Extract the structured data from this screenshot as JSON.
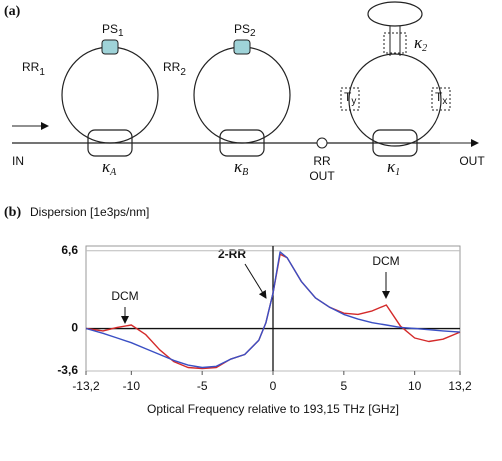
{
  "diagram": {
    "panel_label": "(a)",
    "rings": [
      {
        "label": {
          "text": "RR",
          "sub": "1"
        },
        "phase_shifter": {
          "text": "PS",
          "sub": "1"
        },
        "coupler": {
          "text": "κ",
          "sub": "A"
        }
      },
      {
        "label": {
          "text": "RR",
          "sub": "2"
        },
        "phase_shifter": {
          "text": "PS",
          "sub": "2"
        },
        "coupler": {
          "text": "κ",
          "sub": "B"
        }
      },
      {
        "coupler": {
          "text": "κ",
          "sub": "1"
        },
        "top_coupler": {
          "text": "κ",
          "sub": "2"
        },
        "tap_left": {
          "text": "T",
          "sub": "y"
        },
        "tap_right": {
          "text": "T",
          "sub": "x"
        }
      }
    ],
    "input": "IN",
    "output": "OUT",
    "rr_out": [
      "RR",
      "OUT"
    ]
  },
  "chart_data": {
    "type": "line",
    "panel_label": "(b)",
    "ylabel": "Dispersion [1e3ps/nm]",
    "xlabel": "Optical Frequency relative to 193,15 THz [GHz]",
    "x": [
      -13.2,
      -12,
      -11,
      -10,
      -9,
      -8,
      -7,
      -6,
      -5,
      -4,
      -3,
      -2,
      -1,
      -0.5,
      0,
      0.5,
      1,
      2,
      3,
      4,
      5,
      6,
      7,
      8,
      9,
      10,
      11,
      12,
      13.2
    ],
    "series": [
      {
        "color": "#d42a2a",
        "values": [
          0,
          -0.2,
          0.1,
          0.3,
          -0.5,
          -1.8,
          -2.8,
          -3.3,
          -3.4,
          -3.3,
          -2.6,
          -2.2,
          -1.0,
          0.5,
          3.0,
          6.3,
          6.0,
          4.0,
          2.6,
          1.8,
          1.3,
          1.2,
          1.5,
          2.0,
          0.2,
          -0.8,
          -1.1,
          -0.9,
          -0.3
        ]
      },
      {
        "color": "#3a4fc4",
        "values": [
          0,
          -0.4,
          -0.8,
          -1.2,
          -1.7,
          -2.2,
          -2.7,
          -3.1,
          -3.3,
          -3.2,
          -2.6,
          -2.2,
          -1.0,
          0.5,
          3.0,
          6.5,
          6.0,
          4.0,
          2.6,
          1.8,
          1.2,
          0.8,
          0.5,
          0.3,
          0.1,
          0,
          -0.1,
          -0.2,
          -0.3
        ]
      }
    ],
    "annotations": [
      "DCM",
      "2-RR",
      "DCM"
    ],
    "xlim": [
      -13.2,
      13.2
    ],
    "ylim": [
      -3.6,
      7
    ],
    "xticks": [
      {
        "value": -13.2,
        "label": "-13,2"
      },
      -10,
      -5,
      0,
      5,
      10,
      {
        "value": 13.2,
        "label": "13,2"
      }
    ],
    "yticks": [
      {
        "value": -3.6,
        "label": "-3,6"
      },
      0,
      {
        "value": 6.6,
        "label": "6,6"
      }
    ],
    "grid": true,
    "zero_lines": true
  }
}
